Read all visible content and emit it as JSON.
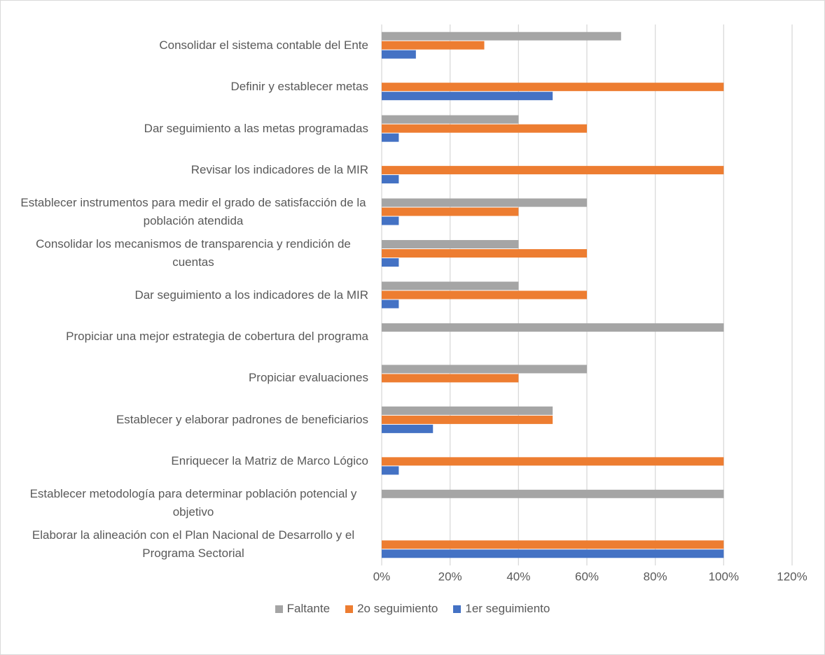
{
  "chart_data": {
    "type": "barh",
    "categories": [
      "Consolidar el sistema contable del Ente",
      "Definir y establecer metas",
      "Dar seguimiento a las metas programadas",
      "Revisar los indicadores de la MIR",
      "Establecer instrumentos para medir el grado de satisfacción de la población atendida",
      "Consolidar los mecanismos de transparencia y rendición de cuentas",
      "Dar seguimiento a los indicadores de la MIR",
      "Propiciar una mejor estrategia de cobertura del programa",
      "Propiciar evaluaciones",
      "Establecer y elaborar padrones de beneficiarios",
      "Enriquecer la Matriz de Marco Lógico",
      "Establecer metodología para determinar población potencial y objetivo",
      "Elaborar la alineación con el Plan Nacional de Desarrollo y el Programa Sectorial"
    ],
    "series": [
      {
        "name": "Faltante",
        "color": "#a5a5a5",
        "values": [
          70,
          0,
          40,
          0,
          60,
          40,
          40,
          100,
          60,
          50,
          0,
          100,
          0
        ]
      },
      {
        "name": "2o seguimiento",
        "color": "#ed7d31",
        "values": [
          30,
          100,
          60,
          100,
          40,
          60,
          60,
          0,
          40,
          50,
          100,
          0,
          100
        ]
      },
      {
        "name": "1er seguimiento",
        "color": "#4472c4",
        "values": [
          10,
          50,
          5,
          5,
          5,
          5,
          5,
          0,
          0,
          15,
          5,
          0,
          100
        ]
      }
    ],
    "xlim": [
      0,
      120
    ],
    "xticks": [
      {
        "value": 0,
        "label": "0%"
      },
      {
        "value": 20,
        "label": "20%"
      },
      {
        "value": 40,
        "label": "40%"
      },
      {
        "value": 60,
        "label": "60%"
      },
      {
        "value": 80,
        "label": "80%"
      },
      {
        "value": 100,
        "label": "100%"
      },
      {
        "value": 120,
        "label": "120%"
      }
    ],
    "grid": true,
    "legend": "bottom"
  }
}
